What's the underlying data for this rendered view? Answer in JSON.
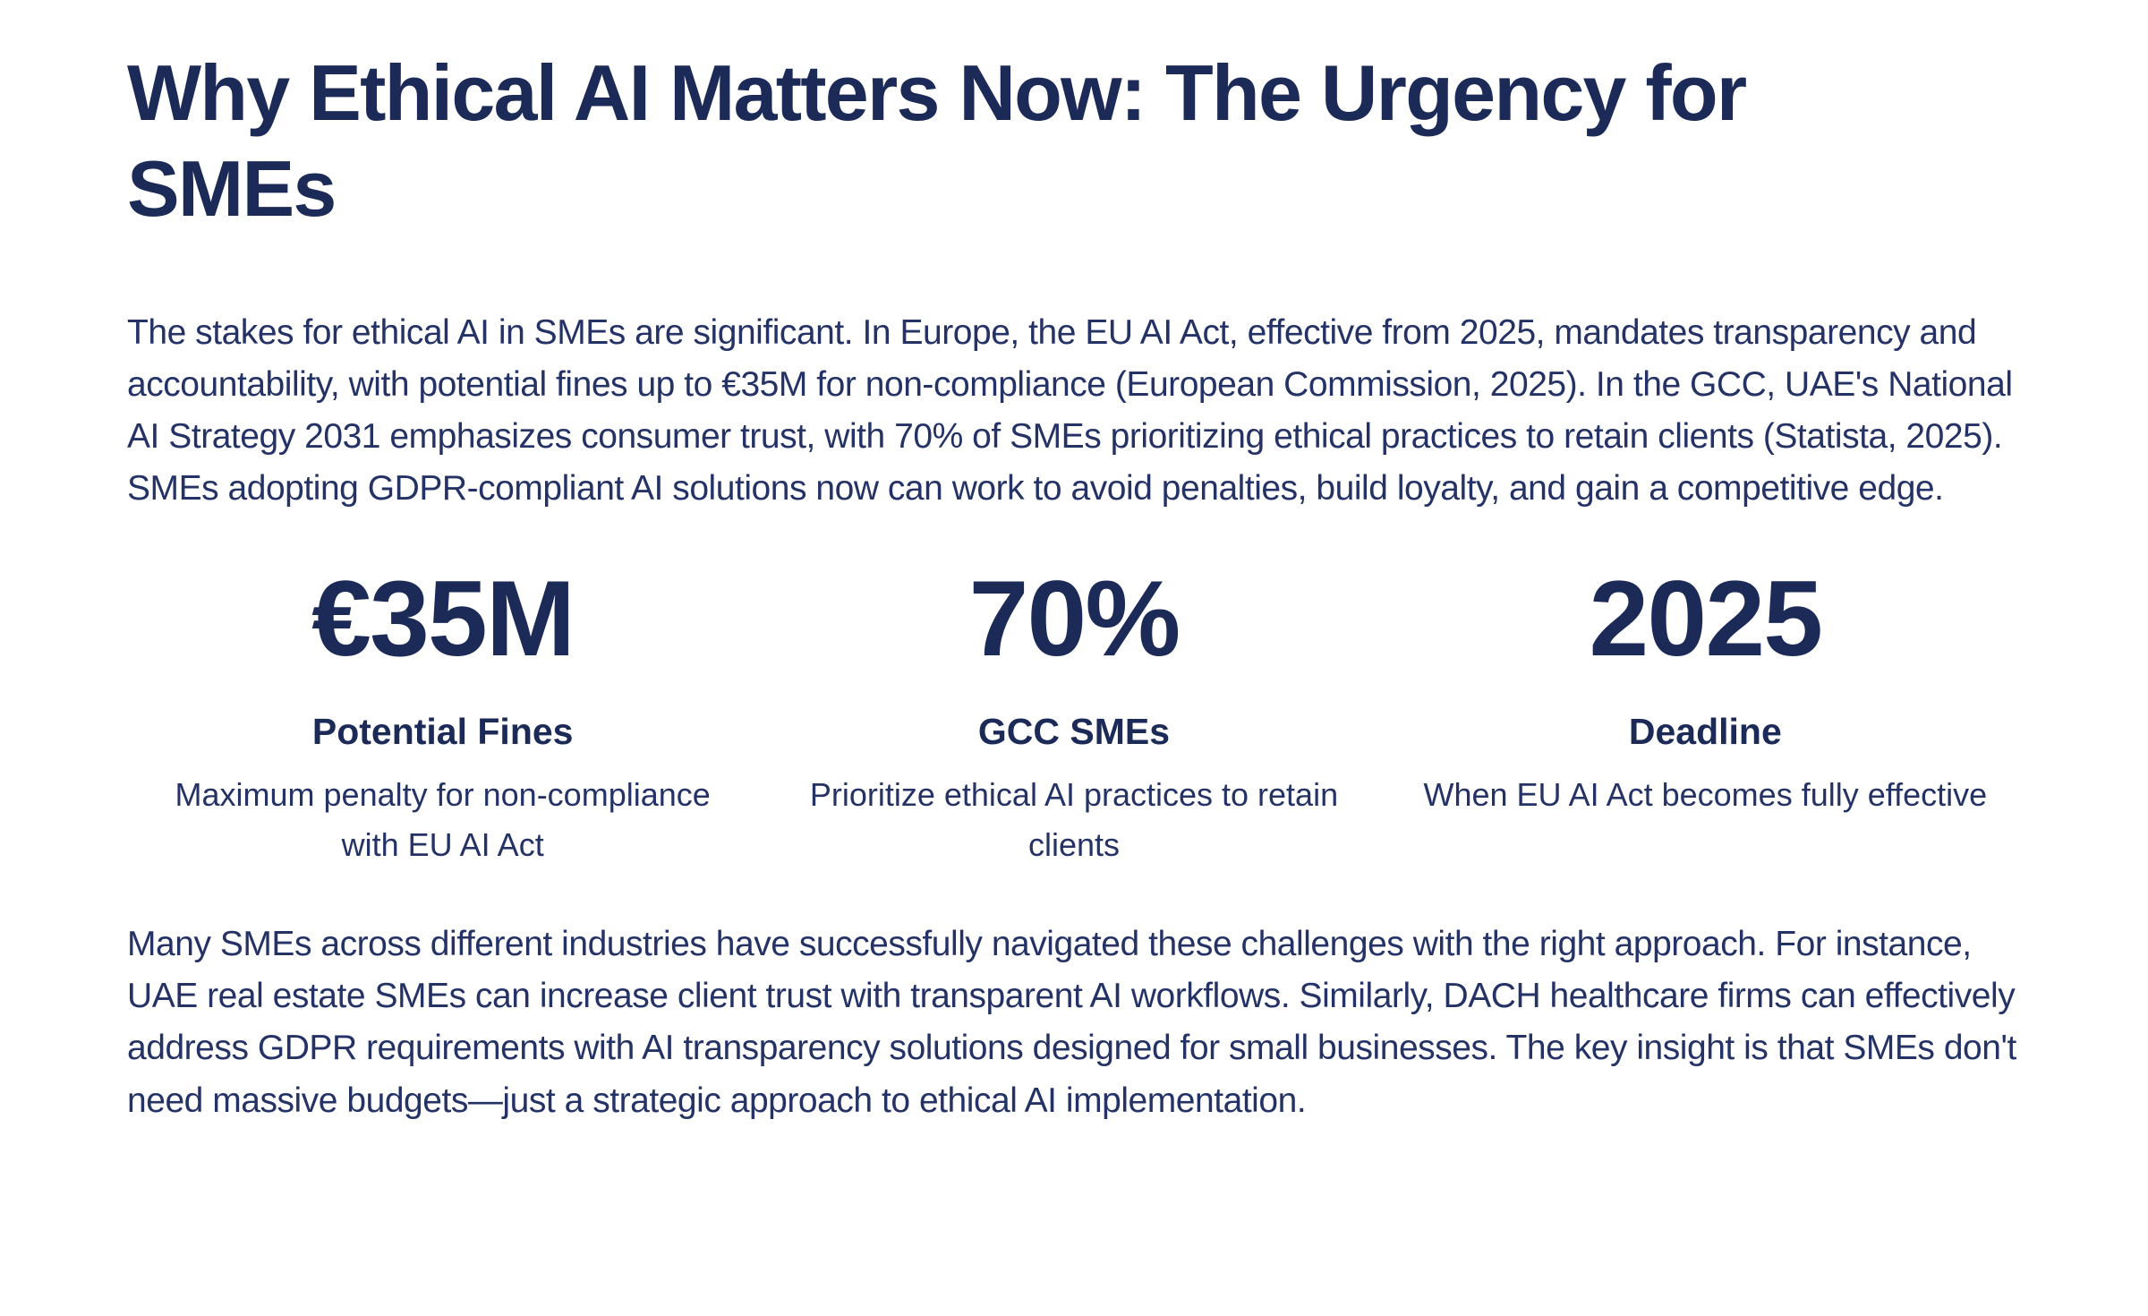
{
  "colors": {
    "text_heading": "#1c2a58",
    "text_body": "#243266",
    "background": "#ffffff"
  },
  "heading": {
    "full": "Why Ethical AI Matters Now: The Urgency for SMEs",
    "lines": [
      "Why Ethical AI Matters Now: The Urgency for",
      "SMEs"
    ]
  },
  "intro_paragraph": "The stakes for ethical AI in SMEs are significant. In Europe, the EU AI Act, effective from 2025, mandates transparency and accountability, with potential fines up to €35M for non-compliance (European Commission, 2025). In the GCC, UAE's National AI Strategy 2031 emphasizes consumer trust, with 70% of SMEs prioritizing ethical practices to retain clients (Statista, 2025). SMEs adopting GDPR-compliant AI solutions now can work to avoid penalties, build loyalty, and gain a competitive edge.",
  "stats": {
    "items": [
      {
        "value": "€35M",
        "label": "Potential Fines",
        "description": "Maximum penalty for non-compliance with EU AI Act"
      },
      {
        "value": "70%",
        "label": "GCC SMEs",
        "description": "Prioritize ethical AI practices to retain clients"
      },
      {
        "value": "2025",
        "label": "Deadline",
        "description": "When EU AI Act becomes fully effective"
      }
    ]
  },
  "closing_paragraph": "Many SMEs across different industries have successfully navigated these challenges with the right approach. For instance, UAE real estate SMEs can increase client trust with transparent AI workflows. Similarly, DACH healthcare firms can effectively address GDPR requirements with AI transparency solutions designed for small businesses. The key insight is that SMEs don't need massive budgets—just a strategic approach to ethical AI implementation."
}
